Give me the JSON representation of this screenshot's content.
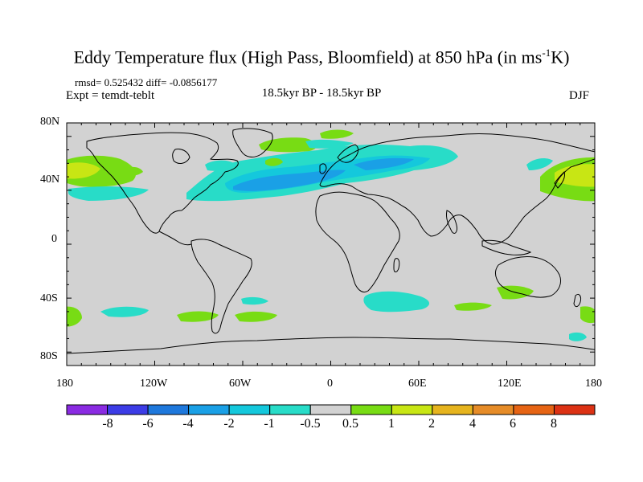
{
  "title": "Eddy Temperature flux (High Pass, Bloomfield) at 850 hPa (in ms",
  "title_sup": "-1",
  "title_end": "K)",
  "stats": "rmsd= 0.525432 diff= -0.0856177",
  "expt": "Expt = temdt-teblt",
  "center_label": "18.5kyr BP - 18.5kyr BP",
  "season": "DJF",
  "lat_labels": [
    "80N",
    "40N",
    "0",
    "40S",
    "80S"
  ],
  "lon_labels": [
    "180",
    "120W",
    "60W",
    "0",
    "60E",
    "120E",
    "180"
  ],
  "colorbar": {
    "labels": [
      "-8",
      "-6",
      "-4",
      "-2",
      "-1",
      "-0.5",
      "0.5",
      "1",
      "2",
      "4",
      "6",
      "8"
    ],
    "colors": [
      "#8a2be2",
      "#3c3ce6",
      "#1e78dc",
      "#1aa0e6",
      "#14c8dc",
      "#28dcc8",
      "#d2d2d2",
      "#78dc14",
      "#c8e614",
      "#e6b41e",
      "#e68c28",
      "#e66414",
      "#dc3214"
    ]
  },
  "map_colors": {
    "ocean_land_background": "#d2d2d2",
    "coast": "#000000"
  }
}
